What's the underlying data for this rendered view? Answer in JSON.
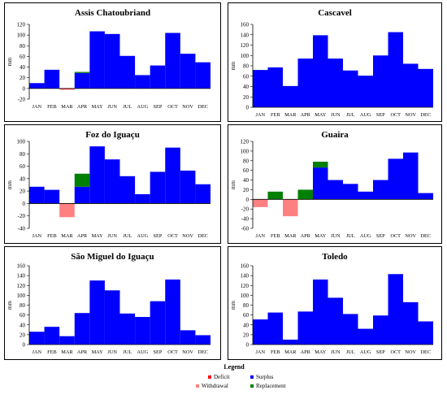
{
  "colors": {
    "deficit": "#ff0000",
    "withdrawal": "#ff8080",
    "surplus": "#0000ff",
    "replacement": "#008000"
  },
  "legend": {
    "title": "Legend",
    "deficit": "Deficit",
    "withdrawal": "Withdrawal",
    "surplus": "Surplus",
    "replacement": "Replacement"
  },
  "chart_data": [
    {
      "type": "bar",
      "title": "Assis Chatoubriand",
      "ylabel": "mm",
      "ylim": [
        -20,
        120
      ],
      "yticks": [
        -20,
        0,
        20,
        40,
        60,
        80,
        100,
        120
      ],
      "categories": [
        "JAN",
        "FEB",
        "MAR",
        "APR",
        "MAY",
        "JUN",
        "JUL",
        "AUG",
        "SEP",
        "OCT",
        "NOV",
        "DEC"
      ],
      "series": [
        {
          "name": "Surplus",
          "values": [
            10,
            35,
            0,
            29,
            107,
            102,
            61,
            25,
            43,
            104,
            65,
            49
          ]
        },
        {
          "name": "Replacement",
          "values": [
            0,
            0,
            0,
            2,
            0,
            0,
            0,
            0,
            0,
            0,
            0,
            0
          ]
        },
        {
          "name": "Withdrawal",
          "values": [
            0,
            0,
            -1,
            0,
            0,
            0,
            0,
            0,
            0,
            0,
            0,
            0
          ]
        },
        {
          "name": "Deficit",
          "values": [
            0,
            0,
            -1,
            0,
            0,
            0,
            0,
            0,
            0,
            0,
            0,
            0
          ]
        }
      ]
    },
    {
      "type": "bar",
      "title": "Cascavel",
      "ylabel": "mm",
      "ylim": [
        0,
        160
      ],
      "yticks": [
        0,
        20,
        40,
        60,
        80,
        100,
        120,
        140,
        160
      ],
      "categories": [
        "JAN",
        "FEB",
        "MAR",
        "APR",
        "MAY",
        "JUN",
        "JUL",
        "AUG",
        "SEP",
        "OCT",
        "NOV",
        "DEC"
      ],
      "series": [
        {
          "name": "Surplus",
          "values": [
            72,
            77,
            41,
            94,
            139,
            94,
            71,
            61,
            100,
            145,
            84,
            74
          ]
        }
      ]
    },
    {
      "type": "bar",
      "title": "Foz do Iguaçu",
      "ylabel": "mm",
      "ylim": [
        -40,
        100
      ],
      "yticks": [
        -40,
        -20,
        0,
        20,
        40,
        60,
        80,
        100
      ],
      "categories": [
        "JAN",
        "FEB",
        "MAR",
        "APR",
        "MAY",
        "JUN",
        "JUL",
        "AUG",
        "SEP",
        "OCT",
        "NOV",
        "DEC"
      ],
      "series": [
        {
          "name": "Surplus",
          "values": [
            27,
            22,
            0,
            27,
            92,
            71,
            44,
            15,
            51,
            90,
            53,
            31
          ]
        },
        {
          "name": "Replacement",
          "values": [
            0,
            0,
            0,
            21,
            0,
            0,
            0,
            0,
            0,
            0,
            0,
            0
          ]
        },
        {
          "name": "Withdrawal",
          "values": [
            0,
            0,
            -22,
            0,
            0,
            0,
            0,
            0,
            0,
            0,
            0,
            0
          ]
        }
      ]
    },
    {
      "type": "bar",
      "title": "Guaira",
      "ylabel": "mm",
      "ylim": [
        -60,
        120
      ],
      "yticks": [
        -60,
        -40,
        -20,
        0,
        20,
        40,
        60,
        80,
        100,
        120
      ],
      "categories": [
        "JAN",
        "FEB",
        "MAR",
        "APR",
        "MAY",
        "JUN",
        "JUL",
        "AUG",
        "SEP",
        "OCT",
        "NOV",
        "DEC"
      ],
      "series": [
        {
          "name": "Surplus",
          "values": [
            0,
            0,
            0,
            0,
            66,
            40,
            32,
            16,
            40,
            84,
            97,
            13
          ]
        },
        {
          "name": "Replacement",
          "values": [
            0,
            16,
            0,
            20,
            12,
            0,
            0,
            0,
            0,
            0,
            0,
            0
          ]
        },
        {
          "name": "Withdrawal",
          "values": [
            -16,
            0,
            -35,
            0,
            0,
            0,
            0,
            0,
            0,
            0,
            0,
            0
          ]
        }
      ]
    },
    {
      "type": "bar",
      "title": "São Miguel do Iguaçu",
      "ylabel": "mm",
      "ylim": [
        0,
        160
      ],
      "yticks": [
        0,
        20,
        40,
        60,
        80,
        100,
        120,
        140,
        160
      ],
      "categories": [
        "JAN",
        "FEB",
        "MAR",
        "APR",
        "MAY",
        "JUN",
        "JUL",
        "AUG",
        "SEP",
        "OCT",
        "NOV",
        "DEC"
      ],
      "series": [
        {
          "name": "Surplus",
          "values": [
            26,
            36,
            17,
            64,
            130,
            110,
            63,
            56,
            88,
            132,
            29,
            19
          ]
        }
      ]
    },
    {
      "type": "bar",
      "title": "Toledo",
      "ylabel": "mm",
      "ylim": [
        0,
        160
      ],
      "yticks": [
        0,
        20,
        40,
        60,
        80,
        100,
        120,
        140,
        160
      ],
      "categories": [
        "JAN",
        "FEB",
        "MAR",
        "APR",
        "MAY",
        "JUN",
        "JUL",
        "AUG",
        "SEP",
        "OCT",
        "NOV",
        "DEC"
      ],
      "series": [
        {
          "name": "Surplus",
          "values": [
            51,
            65,
            10,
            67,
            132,
            95,
            62,
            32,
            59,
            143,
            86,
            47
          ]
        }
      ]
    }
  ]
}
